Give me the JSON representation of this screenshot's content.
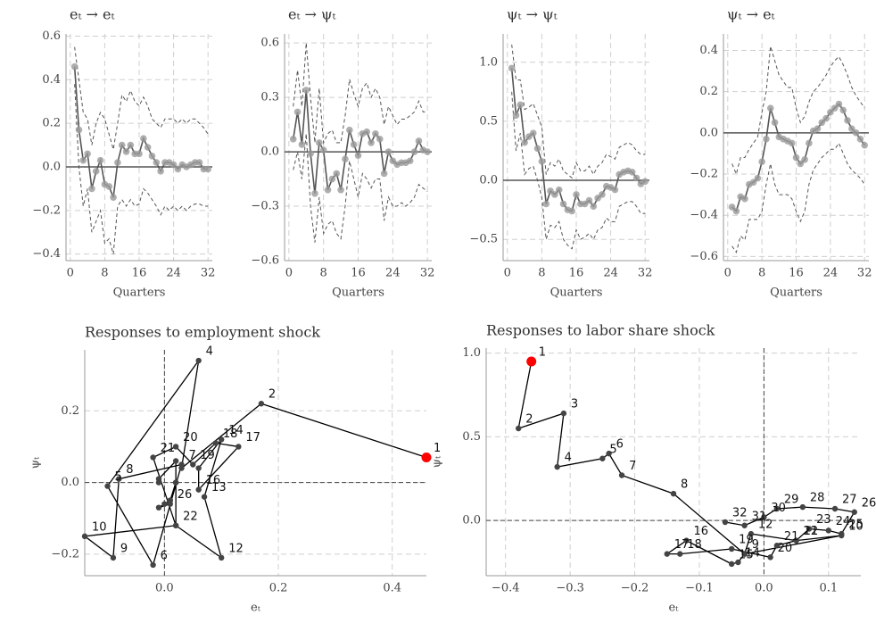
{
  "chart_data": [
    {
      "type": "line",
      "title": "eₜ → eₜ",
      "x_label": "Quarters",
      "color": "#555555",
      "point_color": "#9a9a9a",
      "x": [
        1,
        2,
        3,
        4,
        5,
        6,
        7,
        8,
        9,
        10,
        11,
        12,
        13,
        14,
        15,
        16,
        17,
        18,
        19,
        20,
        21,
        22,
        23,
        24,
        25,
        26,
        27,
        28,
        29,
        30,
        31,
        32
      ],
      "values": [
        0.46,
        0.17,
        0.03,
        0.06,
        -0.1,
        -0.02,
        0.03,
        -0.08,
        -0.09,
        -0.14,
        0.02,
        0.1,
        0.07,
        0.1,
        0.06,
        0.06,
        0.13,
        0.09,
        0.05,
        0.02,
        -0.02,
        0.02,
        0.02,
        0.01,
        -0.01,
        0.01,
        0.0,
        0.01,
        0.02,
        0.02,
        -0.01,
        -0.01
      ],
      "upper": [
        0.55,
        0.4,
        0.25,
        0.22,
        0.1,
        0.2,
        0.25,
        0.22,
        0.15,
        0.08,
        0.2,
        0.33,
        0.3,
        0.35,
        0.3,
        0.28,
        0.32,
        0.28,
        0.22,
        0.2,
        0.18,
        0.22,
        0.22,
        0.22,
        0.2,
        0.22,
        0.2,
        0.22,
        0.22,
        0.2,
        0.18,
        0.15
      ],
      "lower": [
        0.38,
        0.0,
        -0.18,
        -0.1,
        -0.3,
        -0.25,
        -0.2,
        -0.35,
        -0.33,
        -0.4,
        -0.18,
        -0.15,
        -0.18,
        -0.15,
        -0.18,
        -0.17,
        -0.1,
        -0.12,
        -0.15,
        -0.18,
        -0.22,
        -0.18,
        -0.2,
        -0.18,
        -0.2,
        -0.18,
        -0.2,
        -0.18,
        -0.17,
        -0.17,
        -0.18,
        -0.18
      ],
      "xlim": [
        -1,
        33
      ],
      "xticks": [
        0,
        8,
        16,
        24,
        32
      ],
      "ylim": [
        -0.43,
        0.61
      ],
      "yticks": [
        {
          "value": -0.4,
          "label": "−0.4"
        },
        {
          "value": -0.2,
          "label": "−0.2"
        },
        {
          "value": 0,
          "label": "0.0"
        },
        0.2,
        0.4,
        0.6
      ],
      "grid": true
    },
    {
      "type": "line",
      "title": "eₜ → ψₜ",
      "x_label": "Quarters",
      "color": "#555555",
      "point_color": "#9a9a9a",
      "x": [
        1,
        2,
        3,
        4,
        5,
        6,
        7,
        8,
        9,
        10,
        11,
        12,
        13,
        14,
        15,
        16,
        17,
        18,
        19,
        20,
        21,
        22,
        23,
        24,
        25,
        26,
        27,
        28,
        29,
        30,
        31,
        32
      ],
      "values": [
        0.07,
        0.22,
        0.04,
        0.34,
        -0.01,
        -0.23,
        0.05,
        0.01,
        -0.21,
        -0.15,
        -0.12,
        -0.21,
        -0.04,
        0.12,
        0.04,
        -0.02,
        0.1,
        0.11,
        0.05,
        0.1,
        0.07,
        -0.12,
        0.0,
        -0.05,
        -0.07,
        -0.06,
        -0.06,
        -0.05,
        0.0,
        0.06,
        0.01,
        0.0
      ],
      "upper": [
        0.25,
        0.45,
        0.25,
        0.6,
        0.3,
        0.05,
        0.35,
        0.05,
        0.1,
        0.12,
        0.05,
        0.05,
        0.2,
        0.4,
        0.32,
        0.25,
        0.35,
        0.38,
        0.3,
        0.35,
        0.3,
        0.15,
        0.25,
        0.2,
        0.15,
        0.18,
        0.18,
        0.2,
        0.22,
        0.28,
        0.22,
        0.22
      ],
      "lower": [
        -0.1,
        0.0,
        -0.15,
        0.1,
        -0.3,
        -0.5,
        -0.25,
        -0.45,
        -0.4,
        -0.38,
        -0.45,
        -0.48,
        -0.3,
        -0.05,
        -0.15,
        -0.25,
        -0.12,
        -0.15,
        -0.2,
        -0.15,
        -0.15,
        -0.38,
        -0.25,
        -0.3,
        -0.3,
        -0.28,
        -0.3,
        -0.28,
        -0.25,
        -0.18,
        -0.2,
        -0.22
      ],
      "xlim": [
        -1,
        33
      ],
      "xticks": [
        0,
        8,
        16,
        24,
        32
      ],
      "ylim": [
        -0.6,
        0.65
      ],
      "yticks": [
        {
          "value": -0.6,
          "label": "−0.6"
        },
        {
          "value": -0.3,
          "label": "−0.3"
        },
        {
          "value": 0,
          "label": "0.0"
        },
        0.3,
        0.6
      ],
      "grid": true
    },
    {
      "type": "line",
      "title": "ψₜ → ψₜ",
      "x_label": "Quarters",
      "color": "#555555",
      "point_color": "#9a9a9a",
      "x": [
        1,
        2,
        3,
        4,
        5,
        6,
        7,
        8,
        9,
        10,
        11,
        12,
        13,
        14,
        15,
        16,
        17,
        18,
        19,
        20,
        21,
        22,
        23,
        24,
        25,
        26,
        27,
        28,
        29,
        30,
        31,
        32
      ],
      "values": [
        0.95,
        0.55,
        0.64,
        0.32,
        0.37,
        0.4,
        0.27,
        0.16,
        -0.2,
        -0.09,
        -0.12,
        -0.08,
        -0.2,
        -0.25,
        -0.26,
        -0.12,
        -0.2,
        -0.2,
        -0.17,
        -0.22,
        -0.15,
        -0.12,
        -0.05,
        -0.06,
        -0.08,
        0.05,
        0.07,
        0.08,
        0.07,
        0.02,
        -0.03,
        -0.01
      ],
      "upper": [
        1.15,
        0.85,
        0.85,
        0.6,
        0.62,
        0.65,
        0.55,
        0.45,
        0.05,
        0.15,
        0.12,
        0.18,
        0.08,
        0.05,
        0.02,
        0.15,
        0.08,
        0.08,
        0.12,
        0.05,
        0.12,
        0.15,
        0.22,
        0.2,
        0.18,
        0.28,
        0.3,
        0.32,
        0.3,
        0.25,
        0.22,
        0.22
      ],
      "lower": [
        0.75,
        0.25,
        0.4,
        0.05,
        0.1,
        0.12,
        0.0,
        -0.15,
        -0.5,
        -0.38,
        -0.4,
        -0.35,
        -0.5,
        -0.55,
        -0.58,
        -0.42,
        -0.5,
        -0.48,
        -0.45,
        -0.5,
        -0.42,
        -0.4,
        -0.32,
        -0.35,
        -0.35,
        -0.22,
        -0.2,
        -0.18,
        -0.18,
        -0.22,
        -0.28,
        -0.28
      ],
      "xlim": [
        -1,
        33
      ],
      "xticks": [
        0,
        8,
        16,
        24,
        32
      ],
      "ylim": [
        -0.68,
        1.24
      ],
      "yticks": [
        {
          "value": -0.5,
          "label": "−0.5"
        },
        {
          "value": 0,
          "label": "0.0"
        },
        0.5,
        {
          "value": 1,
          "label": "1.0"
        }
      ],
      "grid": true
    },
    {
      "type": "line",
      "title": "ψₜ → eₜ",
      "x_label": "Quarters",
      "color": "#555555",
      "point_color": "#9a9a9a",
      "x": [
        1,
        2,
        3,
        4,
        5,
        6,
        7,
        8,
        9,
        10,
        11,
        12,
        13,
        14,
        15,
        16,
        17,
        18,
        19,
        20,
        21,
        22,
        23,
        24,
        25,
        26,
        27,
        28,
        29,
        30,
        31,
        32
      ],
      "values": [
        -0.36,
        -0.38,
        -0.31,
        -0.32,
        -0.25,
        -0.24,
        -0.22,
        -0.14,
        -0.03,
        0.12,
        0.05,
        -0.02,
        -0.03,
        -0.04,
        -0.05,
        -0.12,
        -0.15,
        -0.13,
        -0.05,
        0.01,
        0.02,
        0.05,
        0.07,
        0.1,
        0.12,
        0.14,
        0.11,
        0.06,
        0.02,
        0.0,
        -0.03,
        -0.06
      ],
      "upper": [
        -0.15,
        -0.2,
        -0.12,
        -0.12,
        -0.08,
        -0.05,
        -0.02,
        0.1,
        0.2,
        0.42,
        0.35,
        0.28,
        0.25,
        0.22,
        0.22,
        0.12,
        0.05,
        0.08,
        0.15,
        0.2,
        0.22,
        0.25,
        0.28,
        0.32,
        0.35,
        0.37,
        0.33,
        0.28,
        0.22,
        0.18,
        0.15,
        0.12
      ],
      "lower": [
        -0.55,
        -0.58,
        -0.5,
        -0.52,
        -0.42,
        -0.42,
        -0.42,
        -0.38,
        -0.25,
        -0.15,
        -0.25,
        -0.3,
        -0.3,
        -0.3,
        -0.32,
        -0.38,
        -0.43,
        -0.38,
        -0.25,
        -0.18,
        -0.15,
        -0.12,
        -0.1,
        -0.08,
        -0.08,
        -0.05,
        -0.1,
        -0.15,
        -0.18,
        -0.2,
        -0.22,
        -0.25
      ],
      "xlim": [
        -1,
        33
      ],
      "xticks": [
        0,
        8,
        16,
        24,
        32
      ],
      "ylim": [
        -0.62,
        0.48
      ],
      "yticks": [
        {
          "value": -0.6,
          "label": "−0.6"
        },
        {
          "value": -0.4,
          "label": "−0.4"
        },
        {
          "value": -0.2,
          "label": "−0.2"
        },
        {
          "value": 0,
          "label": "0.0"
        },
        0.2,
        0.4
      ],
      "grid": true
    },
    {
      "type": "path",
      "title": "Responses to employment shock",
      "x_label": "eₜ",
      "y_label": "ψₜ",
      "color": "#000000",
      "point_color": "#444444",
      "highlight_color": "#ff0000",
      "x": [
        0.46,
        0.17,
        0.03,
        0.06,
        -0.1,
        -0.02,
        0.03,
        -0.08,
        -0.09,
        -0.14,
        0.02,
        0.1,
        0.07,
        0.1,
        0.06,
        0.06,
        0.13,
        0.09,
        0.05,
        0.02,
        -0.02,
        0.02,
        0.02,
        0.01,
        -0.01,
        0.01,
        0.0,
        0.01,
        0.02,
        0.02,
        -0.01,
        -0.01
      ],
      "y": [
        0.07,
        0.22,
        0.04,
        0.34,
        -0.01,
        -0.23,
        0.05,
        0.01,
        -0.21,
        -0.15,
        -0.12,
        -0.21,
        -0.04,
        0.12,
        0.04,
        -0.02,
        0.1,
        0.11,
        0.05,
        0.1,
        0.07,
        -0.12,
        0.0,
        -0.05,
        -0.07,
        -0.06,
        -0.06,
        -0.05,
        0.0,
        0.06,
        0.01,
        0.0
      ],
      "labels": [
        1,
        2,
        null,
        4,
        5,
        6,
        7,
        8,
        9,
        10,
        null,
        12,
        13,
        14,
        null,
        16,
        17,
        18,
        19,
        20,
        21,
        22,
        null,
        null,
        null,
        26,
        null,
        null,
        null,
        null,
        null,
        null
      ],
      "xlim": [
        -0.14,
        0.46
      ],
      "xticks": [
        {
          "value": 0,
          "label": "0.0"
        },
        0.2,
        0.4
      ],
      "ylim": [
        -0.26,
        0.37
      ],
      "yticks": [
        {
          "value": -0.2,
          "label": "−0.2"
        },
        {
          "value": 0,
          "label": "0.0"
        },
        0.2
      ],
      "grid": true
    },
    {
      "type": "path",
      "title": "Responses to labor share shock",
      "x_label": "eₜ",
      "y_label": "ψₜ",
      "color": "#000000",
      "point_color": "#444444",
      "highlight_color": "#ff0000",
      "x": [
        -0.36,
        -0.38,
        -0.31,
        -0.32,
        -0.25,
        -0.24,
        -0.22,
        -0.14,
        -0.03,
        0.12,
        0.05,
        -0.02,
        -0.03,
        -0.04,
        -0.05,
        -0.12,
        -0.15,
        -0.13,
        -0.05,
        0.01,
        0.02,
        0.05,
        0.07,
        0.1,
        0.12,
        0.14,
        0.11,
        0.06,
        0.02,
        0.0,
        -0.03,
        -0.06
      ],
      "y": [
        0.95,
        0.55,
        0.64,
        0.32,
        0.37,
        0.4,
        0.27,
        0.16,
        -0.2,
        -0.09,
        -0.12,
        -0.08,
        -0.2,
        -0.25,
        -0.26,
        -0.12,
        -0.2,
        -0.2,
        -0.17,
        -0.22,
        -0.15,
        -0.12,
        -0.05,
        -0.06,
        -0.08,
        0.05,
        0.07,
        0.08,
        0.07,
        0.02,
        -0.03,
        -0.01
      ],
      "labels": [
        1,
        2,
        3,
        4,
        5,
        6,
        7,
        8,
        9,
        10,
        11,
        12,
        null,
        14,
        15,
        16,
        17,
        18,
        19,
        20,
        21,
        22,
        23,
        24,
        25,
        26,
        27,
        28,
        29,
        30,
        31,
        32
      ],
      "xlim": [
        -0.43,
        0.15
      ],
      "xticks": [
        {
          "value": -0.4,
          "label": "−0.4"
        },
        {
          "value": -0.3,
          "label": "−0.3"
        },
        {
          "value": -0.2,
          "label": "−0.2"
        },
        {
          "value": -0.1,
          "label": "−0.1"
        },
        {
          "value": 0,
          "label": "0.0"
        },
        0.1
      ],
      "ylim": [
        -0.33,
        1.03
      ],
      "yticks": [
        {
          "value": 0,
          "label": "0.0"
        },
        0.5,
        {
          "value": 1,
          "label": "1.0"
        }
      ],
      "grid": true
    }
  ]
}
